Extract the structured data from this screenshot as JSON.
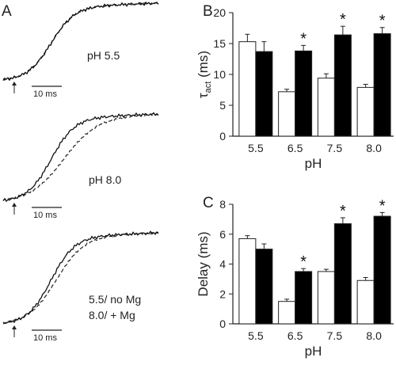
{
  "panel_a": {
    "letter": "A",
    "traces": [
      {
        "label_lines": [
          "pH 5.5"
        ],
        "scale_label": "10 ms",
        "mismatch": 0.0
      },
      {
        "label_lines": [
          "pH 8.0"
        ],
        "scale_label": "10 ms",
        "mismatch": 1.0
      },
      {
        "label_lines": [
          "5.5/ no Mg",
          "8.0/ + Mg"
        ],
        "scale_label": "10 ms",
        "mismatch": 0.4
      }
    ]
  },
  "chart_data": [
    {
      "panel": "B",
      "type": "bar",
      "xlabel": "pH",
      "ylabel_main": "τ",
      "ylabel_sub": "act",
      "ylabel_tail": " (ms)",
      "categories": [
        "5.5",
        "6.5",
        "7.5",
        "8.0"
      ],
      "ylim": [
        0,
        20
      ],
      "yticks": [
        0,
        5,
        10,
        15,
        20
      ],
      "series": [
        {
          "fill": "#ffffff",
          "values": [
            15.3,
            7.2,
            9.4,
            7.9
          ],
          "errors": [
            1.2,
            0.4,
            0.7,
            0.5
          ]
        },
        {
          "fill": "#000000",
          "values": [
            13.7,
            13.8,
            16.4,
            16.6
          ],
          "errors": [
            1.6,
            0.9,
            1.4,
            1.0
          ]
        }
      ],
      "significant": [
        false,
        true,
        true,
        true
      ]
    },
    {
      "panel": "C",
      "type": "bar",
      "xlabel": "pH",
      "ylabel_main": "Delay (ms)",
      "ylabel_sub": "",
      "ylabel_tail": "",
      "categories": [
        "5.5",
        "6.5",
        "7.5",
        "8.0"
      ],
      "ylim": [
        0,
        8
      ],
      "yticks": [
        0,
        2,
        4,
        6,
        8
      ],
      "series": [
        {
          "fill": "#ffffff",
          "values": [
            5.7,
            1.5,
            3.5,
            2.9
          ],
          "errors": [
            0.2,
            0.15,
            0.15,
            0.2
          ]
        },
        {
          "fill": "#000000",
          "values": [
            5.0,
            3.5,
            6.7,
            7.2
          ],
          "errors": [
            0.35,
            0.2,
            0.4,
            0.25
          ]
        }
      ],
      "significant": [
        false,
        true,
        true,
        true
      ]
    }
  ]
}
